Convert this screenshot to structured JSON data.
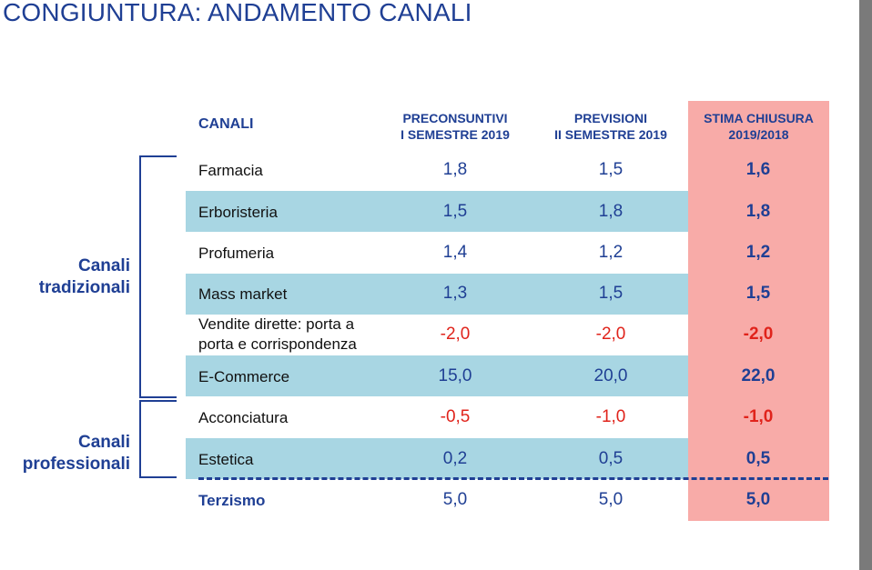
{
  "title": "CONGIUNTURA: ANDAMENTO CANALI",
  "headers": {
    "canali": "CANALI",
    "preconsuntivi": "PRECONSUNTIVI\nI SEMESTRE 2019",
    "previsioni": "PREVISIONI\nII SEMESTRE 2019",
    "stima": "STIMA CHIUSURA\n2019/2018"
  },
  "groups": {
    "tradizionali": "Canali\ntradizionali",
    "professionali": "Canali\nprofessionali"
  },
  "rows": [
    {
      "label": "Farmacia",
      "pre": "1,8",
      "prev": "1,5",
      "stima": "1,6"
    },
    {
      "label": "Erboristeria",
      "pre": "1,5",
      "prev": "1,8",
      "stima": "1,8"
    },
    {
      "label": "Profumeria",
      "pre": "1,4",
      "prev": "1,2",
      "stima": "1,2"
    },
    {
      "label": "Mass market",
      "pre": "1,3",
      "prev": "1,5",
      "stima": "1,5"
    },
    {
      "label": "Vendite dirette: porta a\nporta e corrispondenza",
      "pre": "-2,0",
      "prev": "-2,0",
      "stima": "-2,0"
    },
    {
      "label": "E-Commerce",
      "pre": "15,0",
      "prev": "20,0",
      "stima": "22,0"
    },
    {
      "label": "Acconciatura",
      "pre": "-0,5",
      "prev": "-1,0",
      "stima": "-1,0"
    },
    {
      "label": "Estetica",
      "pre": "0,2",
      "prev": "0,5",
      "stima": "0,5"
    },
    {
      "label": "Terzismo",
      "pre": "5,0",
      "prev": "5,0",
      "stima": "5,0"
    }
  ],
  "colors": {
    "accent": "#1f3f94",
    "negative": "#e0231b",
    "band": "#a8d6e3",
    "highlight": "#f8aba8"
  }
}
